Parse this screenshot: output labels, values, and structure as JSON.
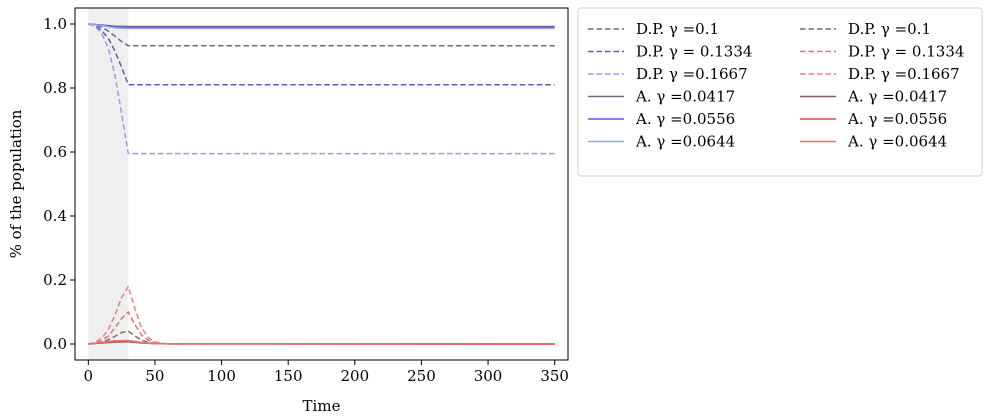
{
  "chart_data": {
    "type": "line",
    "xlabel": "Time",
    "ylabel": "% of the population",
    "xlim": [
      -10,
      360
    ],
    "ylim": [
      -0.05,
      1.05
    ],
    "xticks": [
      0,
      50,
      100,
      150,
      200,
      250,
      300,
      350
    ],
    "yticks": [
      0.0,
      0.2,
      0.4,
      0.6,
      0.8,
      1.0
    ],
    "xtick_labels": [
      "0",
      "50",
      "100",
      "150",
      "200",
      "250",
      "300",
      "350"
    ],
    "ytick_labels": [
      "0.0",
      "0.2",
      "0.4",
      "0.6",
      "0.8",
      "1.0"
    ],
    "shaded_interval": [
      0,
      30
    ],
    "shade_color": "#efefef",
    "legend_position": "outside-right",
    "series": [
      {
        "name": "D.P. γ =0.1",
        "color": "#6b6b80",
        "dash": true,
        "x": [
          0,
          5,
          10,
          15,
          20,
          25,
          30,
          350
        ],
        "y": [
          1.0,
          0.997,
          0.99,
          0.978,
          0.962,
          0.945,
          0.932,
          0.932
        ]
      },
      {
        "name": "D.P. γ = 0.1334",
        "color": "#5a5ac0",
        "dash": true,
        "x": [
          0,
          5,
          10,
          15,
          20,
          25,
          30,
          350
        ],
        "y": [
          1.0,
          0.995,
          0.98,
          0.955,
          0.915,
          0.865,
          0.81,
          0.81
        ]
      },
      {
        "name": "D.P. γ =0.1667",
        "color": "#9a9af5",
        "dash": true,
        "x": [
          0,
          5,
          10,
          15,
          20,
          25,
          30,
          350
        ],
        "y": [
          1.0,
          0.993,
          0.97,
          0.925,
          0.84,
          0.72,
          0.595,
          0.595
        ]
      },
      {
        "name": "A. γ =0.0417",
        "color": "#6b6b80",
        "dash": false,
        "x": [
          0,
          10,
          20,
          30,
          350
        ],
        "y": [
          1.0,
          0.997,
          0.993,
          0.992,
          0.992
        ]
      },
      {
        "name": "A. γ =0.0556",
        "color": "#5a5ad5",
        "dash": false,
        "x": [
          0,
          10,
          20,
          30,
          350
        ],
        "y": [
          1.0,
          0.996,
          0.99,
          0.989,
          0.989
        ]
      },
      {
        "name": "A. γ =0.0644",
        "color": "#a0a0f5",
        "dash": false,
        "x": [
          0,
          10,
          20,
          30,
          350
        ],
        "y": [
          1.0,
          0.995,
          0.988,
          0.986,
          0.986
        ]
      },
      {
        "name": "D.P. γ =0.1",
        "color": "#806a6a",
        "dash": true,
        "x": [
          0,
          5,
          10,
          15,
          20,
          25,
          30,
          35,
          40,
          45,
          50,
          60,
          350
        ],
        "y": [
          0.0,
          0.002,
          0.006,
          0.013,
          0.024,
          0.036,
          0.04,
          0.025,
          0.012,
          0.005,
          0.002,
          0.0,
          0.0
        ]
      },
      {
        "name": "D.P. γ = 0.1334",
        "color": "#e07070",
        "dash": true,
        "x": [
          0,
          5,
          10,
          15,
          20,
          25,
          30,
          35,
          40,
          45,
          50,
          60,
          350
        ],
        "y": [
          0.0,
          0.003,
          0.01,
          0.025,
          0.05,
          0.08,
          0.1,
          0.06,
          0.028,
          0.012,
          0.004,
          0.0,
          0.0
        ]
      },
      {
        "name": "D.P. γ =0.1667",
        "color": "#f08080",
        "dash": true,
        "x": [
          0,
          5,
          10,
          15,
          20,
          25,
          30,
          35,
          40,
          45,
          50,
          60,
          350
        ],
        "y": [
          0.0,
          0.005,
          0.018,
          0.045,
          0.09,
          0.145,
          0.18,
          0.11,
          0.05,
          0.02,
          0.006,
          0.0,
          0.0
        ]
      },
      {
        "name": "A. γ =0.0417",
        "color": "#806060",
        "dash": false,
        "x": [
          0,
          10,
          20,
          30,
          40,
          50,
          350
        ],
        "y": [
          0.0,
          0.003,
          0.006,
          0.007,
          0.003,
          0.001,
          0.0
        ]
      },
      {
        "name": "A. γ =0.0556",
        "color": "#d05050",
        "dash": false,
        "x": [
          0,
          10,
          20,
          30,
          40,
          50,
          350
        ],
        "y": [
          0.0,
          0.004,
          0.008,
          0.009,
          0.004,
          0.001,
          0.0
        ]
      },
      {
        "name": "A. γ =0.0644",
        "color": "#f07070",
        "dash": false,
        "x": [
          0,
          10,
          20,
          30,
          40,
          50,
          350
        ],
        "y": [
          0.0,
          0.005,
          0.01,
          0.011,
          0.005,
          0.001,
          0.0
        ]
      }
    ]
  }
}
